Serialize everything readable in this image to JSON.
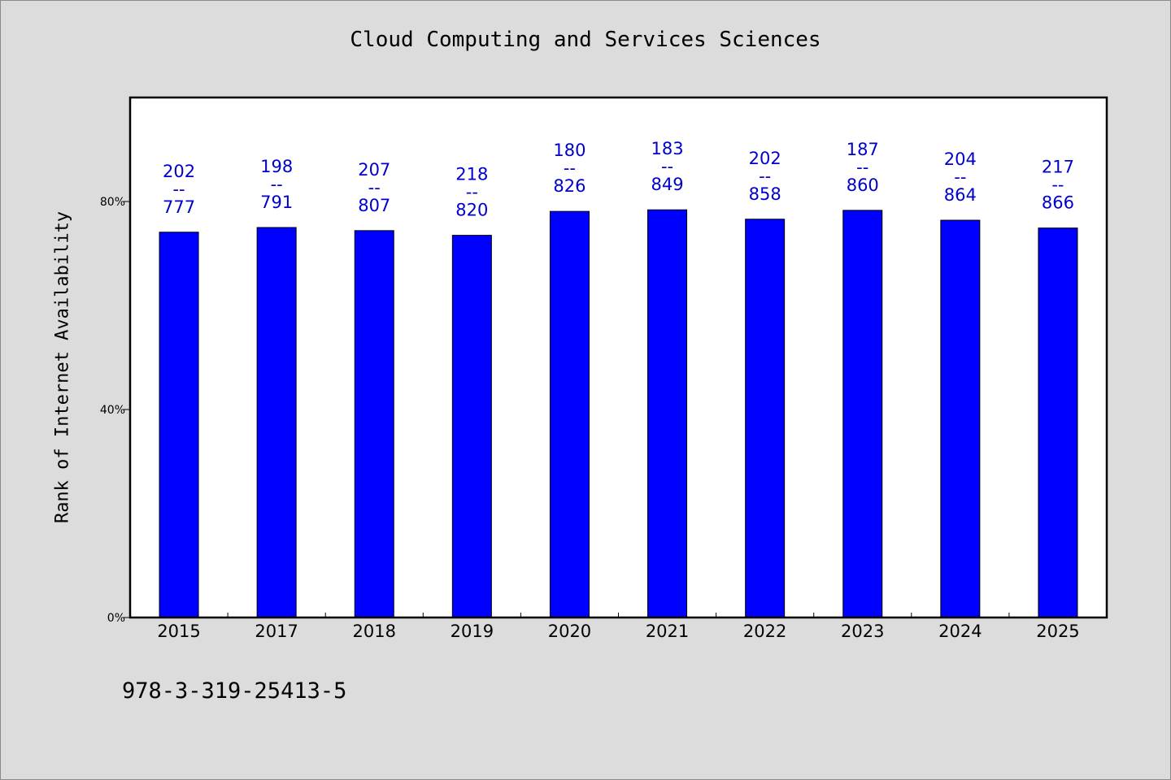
{
  "chart_data": {
    "type": "bar",
    "title": "Cloud Computing and Services Sciences",
    "xlabel": "",
    "ylabel": "Rank of Internet Availability",
    "categories": [
      "2015",
      "2017",
      "2018",
      "2019",
      "2020",
      "2021",
      "2022",
      "2023",
      "2024",
      "2025"
    ],
    "values": [
      74.1,
      75.0,
      74.4,
      73.5,
      78.1,
      78.4,
      76.6,
      78.3,
      76.4,
      74.9
    ],
    "bar_labels": [
      {
        "top": "202",
        "sep": "--",
        "bottom": "777"
      },
      {
        "top": "198",
        "sep": "--",
        "bottom": "791"
      },
      {
        "top": "207",
        "sep": "--",
        "bottom": "807"
      },
      {
        "top": "218",
        "sep": "--",
        "bottom": "820"
      },
      {
        "top": "180",
        "sep": "--",
        "bottom": "826"
      },
      {
        "top": "183",
        "sep": "--",
        "bottom": "849"
      },
      {
        "top": "202",
        "sep": "--",
        "bottom": "858"
      },
      {
        "top": "187",
        "sep": "--",
        "bottom": "860"
      },
      {
        "top": "204",
        "sep": "--",
        "bottom": "864"
      },
      {
        "top": "217",
        "sep": "--",
        "bottom": "866"
      }
    ],
    "yticks": [
      {
        "value": 0,
        "label": "0%"
      },
      {
        "value": 40,
        "label": "40%"
      },
      {
        "value": 80,
        "label": "80%"
      }
    ],
    "ylim": [
      0,
      100
    ],
    "grid": false,
    "legend": "none",
    "bar_color": "#0000ff",
    "label_color": "#0000cc"
  },
  "footer_text": "978-3-319-25413-5"
}
